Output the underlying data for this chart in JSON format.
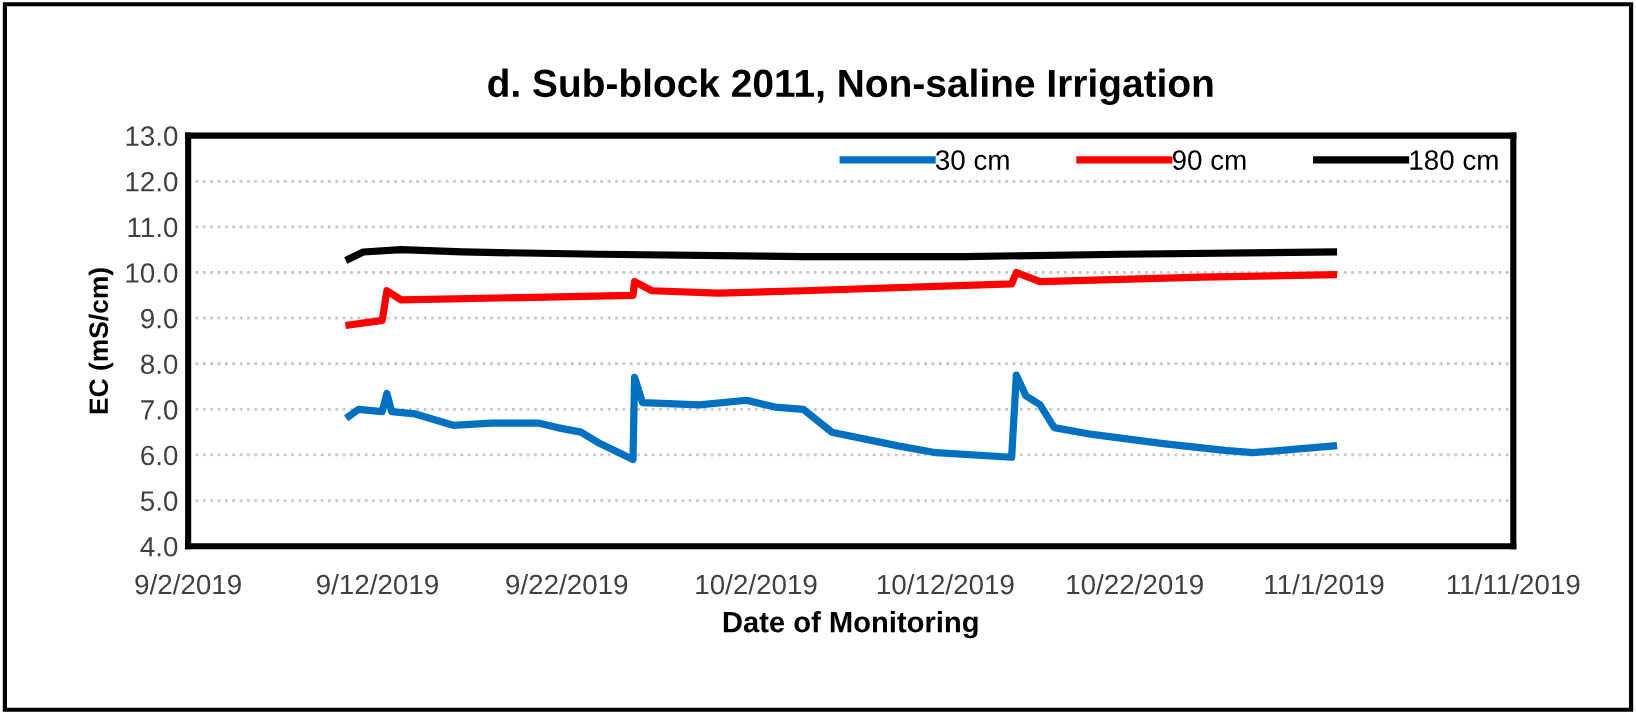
{
  "chart_data": {
    "type": "line",
    "title": "d. Sub-block 2011, Non-saline Irrigation",
    "xlabel": "Date of Monitoring",
    "ylabel": "EC (mS/cm)",
    "series": [
      {
        "name": "30 cm",
        "color": "#0070c0",
        "x": [
          "2019-09-10T12:00",
          "2019-09-11T00:00",
          "2019-09-12T06:00",
          "2019-09-12T12:00",
          "2019-09-12T18:00",
          "2019-09-14T00:00",
          "2019-09-16T00:00",
          "2019-09-18T00:00",
          "2019-09-20T12:00",
          "2019-09-21T12:00",
          "2019-09-22T18:00",
          "2019-09-23T18:00",
          "2019-09-25T12:00",
          "2019-09-25T14:00",
          "2019-09-26T00:00",
          "2019-09-29T00:00",
          "2019-10-01T12:00",
          "2019-10-03T00:00",
          "2019-10-04T12:00",
          "2019-10-06T00:00",
          "2019-10-09T12:00",
          "2019-10-11T12:00",
          "2019-10-15T12:00",
          "2019-10-15T18:00",
          "2019-10-16T06:00",
          "2019-10-17T00:00",
          "2019-10-17T18:00",
          "2019-10-19T18:00",
          "2019-10-23T12:00",
          "2019-10-26T18:00",
          "2019-10-28T06:00",
          "2019-10-29T18:00",
          "2019-11-01T12:00"
        ],
        "values": [
          6.85,
          7.0,
          6.95,
          7.35,
          6.95,
          6.9,
          6.65,
          6.7,
          6.7,
          6.6,
          6.5,
          6.25,
          5.9,
          7.7,
          7.15,
          7.1,
          7.2,
          7.05,
          7.0,
          6.5,
          6.2,
          6.05,
          5.95,
          7.75,
          7.3,
          7.1,
          6.6,
          6.45,
          6.25,
          6.1,
          6.05,
          6.1,
          6.2
        ]
      },
      {
        "name": "90 cm",
        "color": "#ff0000",
        "x": [
          "2019-09-10T12:00",
          "2019-09-12T06:00",
          "2019-09-12T12:00",
          "2019-09-13T06:00",
          "2019-09-25T12:00",
          "2019-09-25T14:00",
          "2019-09-26T12:00",
          "2019-09-30T00:00",
          "2019-10-04T12:00",
          "2019-10-15T12:00",
          "2019-10-15T18:00",
          "2019-10-17T00:00",
          "2019-10-21T06:00",
          "2019-10-25T12:00",
          "2019-11-01T12:00"
        ],
        "values": [
          8.85,
          8.95,
          9.6,
          9.4,
          9.5,
          9.8,
          9.6,
          9.55,
          9.6,
          9.75,
          10.0,
          9.8,
          9.85,
          9.9,
          9.95
        ]
      },
      {
        "name": "180 cm",
        "color": "#000000",
        "x": [
          "2019-09-10T12:00",
          "2019-09-11T06:00",
          "2019-09-13T06:00",
          "2019-09-16T12:00",
          "2019-09-23T18:00",
          "2019-10-04T12:00",
          "2019-10-13T00:00",
          "2019-10-21T06:00",
          "2019-11-01T12:00"
        ],
        "values": [
          10.3,
          10.45,
          10.5,
          10.45,
          10.4,
          10.35,
          10.35,
          10.4,
          10.45
        ]
      }
    ],
    "xlim": [
      "2019-09-02",
      "2019-11-11"
    ],
    "xticks": [
      {
        "value": "2019-09-02",
        "label": "9/2/2019"
      },
      {
        "value": "2019-09-12",
        "label": "9/12/2019"
      },
      {
        "value": "2019-09-22",
        "label": "9/22/2019"
      },
      {
        "value": "2019-10-02",
        "label": "10/2/2019"
      },
      {
        "value": "2019-10-12",
        "label": "10/12/2019"
      },
      {
        "value": "2019-10-22",
        "label": "10/22/2019"
      },
      {
        "value": "2019-11-01",
        "label": "11/1/2019"
      },
      {
        "value": "2019-11-11",
        "label": "11/11/2019"
      }
    ],
    "ylim": [
      4,
      13
    ],
    "yticks": [
      {
        "value": 4,
        "label": "4.0"
      },
      {
        "value": 5,
        "label": "5.0"
      },
      {
        "value": 6,
        "label": "6.0"
      },
      {
        "value": 7,
        "label": "7.0"
      },
      {
        "value": 8,
        "label": "8.0"
      },
      {
        "value": 9,
        "label": "9.0"
      },
      {
        "value": 10,
        "label": "10.0"
      },
      {
        "value": 11,
        "label": "11.0"
      },
      {
        "value": 12,
        "label": "12.0"
      },
      {
        "value": 13,
        "label": "13.0"
      }
    ],
    "grid": "y",
    "legend": "top right",
    "marker": "none",
    "line_style": "solid"
  }
}
